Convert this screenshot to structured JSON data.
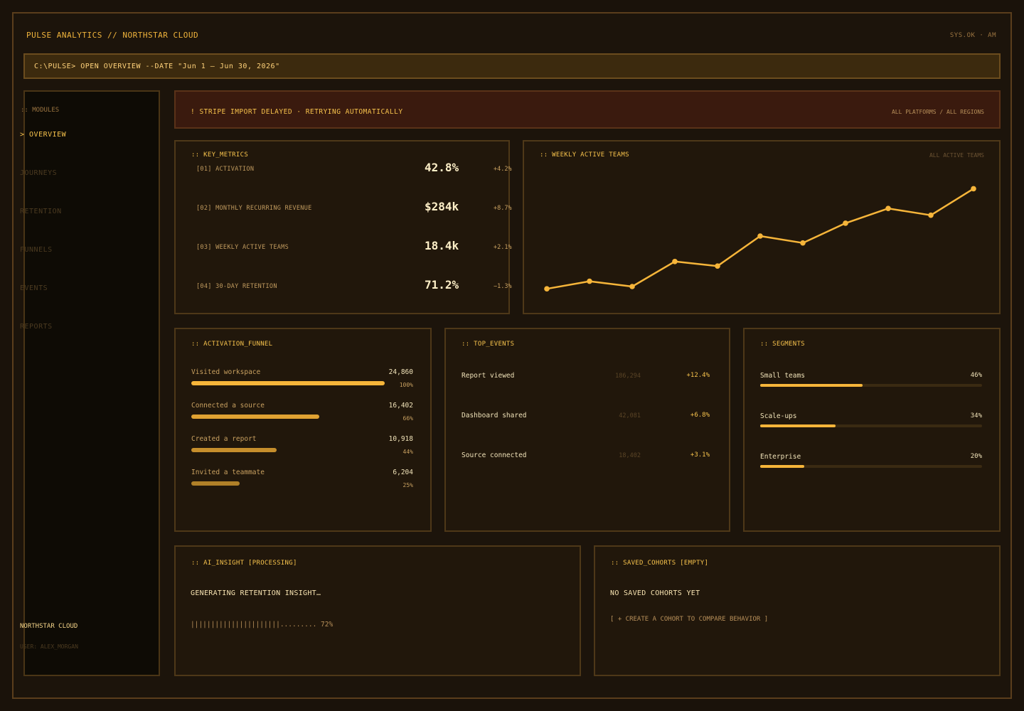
{
  "app": {
    "title": "PULSE ANALYTICS // NORTHSTAR CLOUD",
    "status": "SYS.OK · AM"
  },
  "command": {
    "text": "C:\\PULSE> OPEN OVERVIEW --DATE \"Jun 1 – Jun 30, 2026\""
  },
  "sidebar": {
    "heading": ":: MODULES",
    "items": [
      {
        "label": "> OVERVIEW",
        "active": true
      },
      {
        "label": "JOURNEYS",
        "active": false
      },
      {
        "label": "RETENTION",
        "active": false
      },
      {
        "label": "FUNNELS",
        "active": false
      },
      {
        "label": "EVENTS",
        "active": false
      },
      {
        "label": "REPORTS",
        "active": false
      }
    ],
    "org": "NORTHSTAR CLOUD",
    "user": "USER: ALEX_MORGAN"
  },
  "alert": {
    "message": "! STRIPE IMPORT DELAYED · RETRYING AUTOMATICALLY",
    "scope": "ALL PLATFORMS / ALL REGIONS"
  },
  "key_metrics": {
    "title": ":: KEY_METRICS",
    "rows": [
      {
        "label": "[01] ACTIVATION",
        "value": "42.8%",
        "delta": "+4.2%"
      },
      {
        "label": "[02] MONTHLY RECURRING REVENUE",
        "value": "$284k",
        "delta": "+8.7%"
      },
      {
        "label": "[03] WEEKLY ACTIVE TEAMS",
        "value": "18.4k",
        "delta": "+2.1%"
      },
      {
        "label": "[04] 30-DAY RETENTION",
        "value": "71.2%",
        "delta": "−1.3%"
      }
    ]
  },
  "wat_chart": {
    "title": ":: WEEKLY ACTIVE TEAMS",
    "subtitle": "ALL ACTIVE TEAMS",
    "line_color": "#f6b53a"
  },
  "chart_data": {
    "type": "line",
    "title": "",
    "xlabel": "",
    "ylabel": "",
    "grid": false,
    "x": [
      1,
      2,
      3,
      4,
      5,
      6,
      7,
      8,
      9,
      10,
      11
    ],
    "series": [
      {
        "values": [
          3.0,
          9.6,
          5.0,
          27.0,
          23.0,
          49.4,
          43.3,
          60.7,
          73.6,
          67.7,
          91.0
        ]
      }
    ],
    "ylim": [
      0,
      100
    ]
  },
  "funnel": {
    "title": ":: ACTIVATION_FUNNEL",
    "steps": [
      {
        "label": "Visited workspace",
        "count": "24,860",
        "pct": "100%",
        "fraction": 1.0,
        "color": "#f6b53a"
      },
      {
        "label": "Connected a source",
        "count": "16,402",
        "pct": "66%",
        "fraction": 0.66,
        "color": "#e0a232"
      },
      {
        "label": "Created a report",
        "count": "10,918",
        "pct": "44%",
        "fraction": 0.44,
        "color": "#c68e2c"
      },
      {
        "label": "Invited a teammate",
        "count": "6,204",
        "pct": "25%",
        "fraction": 0.25,
        "color": "#b08028"
      }
    ]
  },
  "top_events": {
    "title": ":: TOP_EVENTS",
    "rows": [
      {
        "label": "Report viewed",
        "count": "186,294",
        "delta": "+12.4%"
      },
      {
        "label": "Dashboard shared",
        "count": "42,081",
        "delta": "+6.8%"
      },
      {
        "label": "Source connected",
        "count": "18,402",
        "delta": "+3.1%"
      }
    ]
  },
  "segments": {
    "title": ":: SEGMENTS",
    "rows": [
      {
        "label": "Small teams",
        "pct": "46%",
        "fraction": 0.46
      },
      {
        "label": "Scale-ups",
        "pct": "34%",
        "fraction": 0.34
      },
      {
        "label": "Enterprise",
        "pct": "20%",
        "fraction": 0.2
      }
    ]
  },
  "ai_insight": {
    "title": ":: AI_INSIGHT [PROCESSING]",
    "message": "GENERATING RETENTION INSIGHT…",
    "progress_text": "||||||||||||||||||||||......... 72%",
    "progress": 0.72
  },
  "saved_cohorts": {
    "title": ":: SAVED_COHORTS [EMPTY]",
    "message": "NO SAVED COHORTS YET",
    "cta": "[ + CREATE A COHORT TO COMPARE BEHAVIOR ]"
  }
}
